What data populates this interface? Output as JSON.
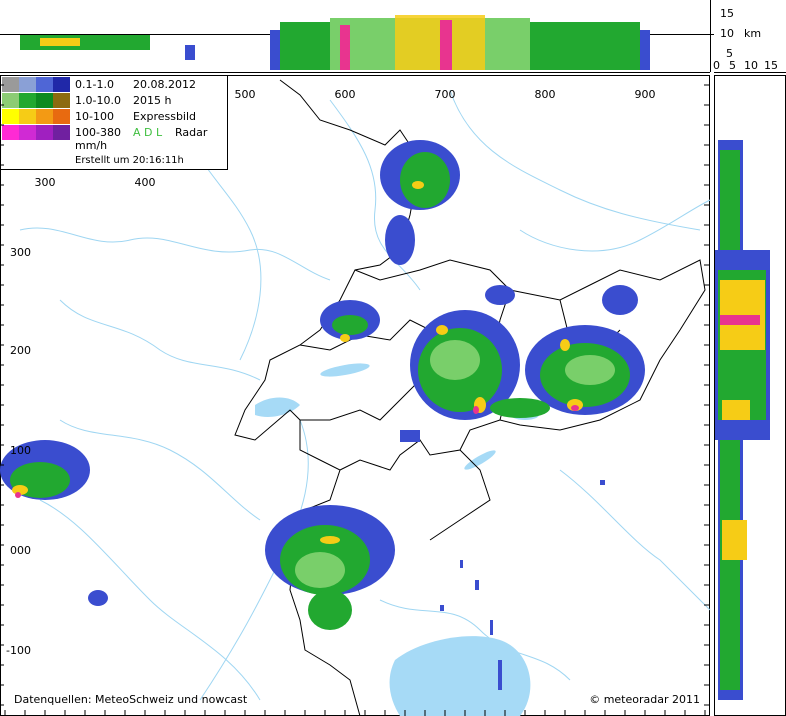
{
  "legend": {
    "rows": [
      {
        "range": "0.1-1.0",
        "info": "20.08.2012"
      },
      {
        "range": "1.0-10.0",
        "info": "2015 h"
      },
      {
        "range": "10-100",
        "info": "Expressbild"
      },
      {
        "range": "100-380",
        "info_accent": "A D L",
        "info": "Radar"
      }
    ],
    "unit": "mm/h",
    "created": "Erstellt um 20:16:11h"
  },
  "axes": {
    "x_top": [
      "500",
      "600",
      "700",
      "800",
      "900"
    ],
    "x_inner": [
      "300",
      "400"
    ],
    "y_left": [
      "300",
      "200",
      "100",
      "000",
      "-100"
    ]
  },
  "profile": {
    "height_ticks": [
      "15",
      "10",
      "5"
    ],
    "height_unit": "km",
    "width_ticks": [
      "0",
      "5",
      "10",
      "15"
    ]
  },
  "footer": {
    "source": "Datenquellen: MeteoSchweiz und nowcast",
    "copyright": "© meteoradar 2011"
  }
}
